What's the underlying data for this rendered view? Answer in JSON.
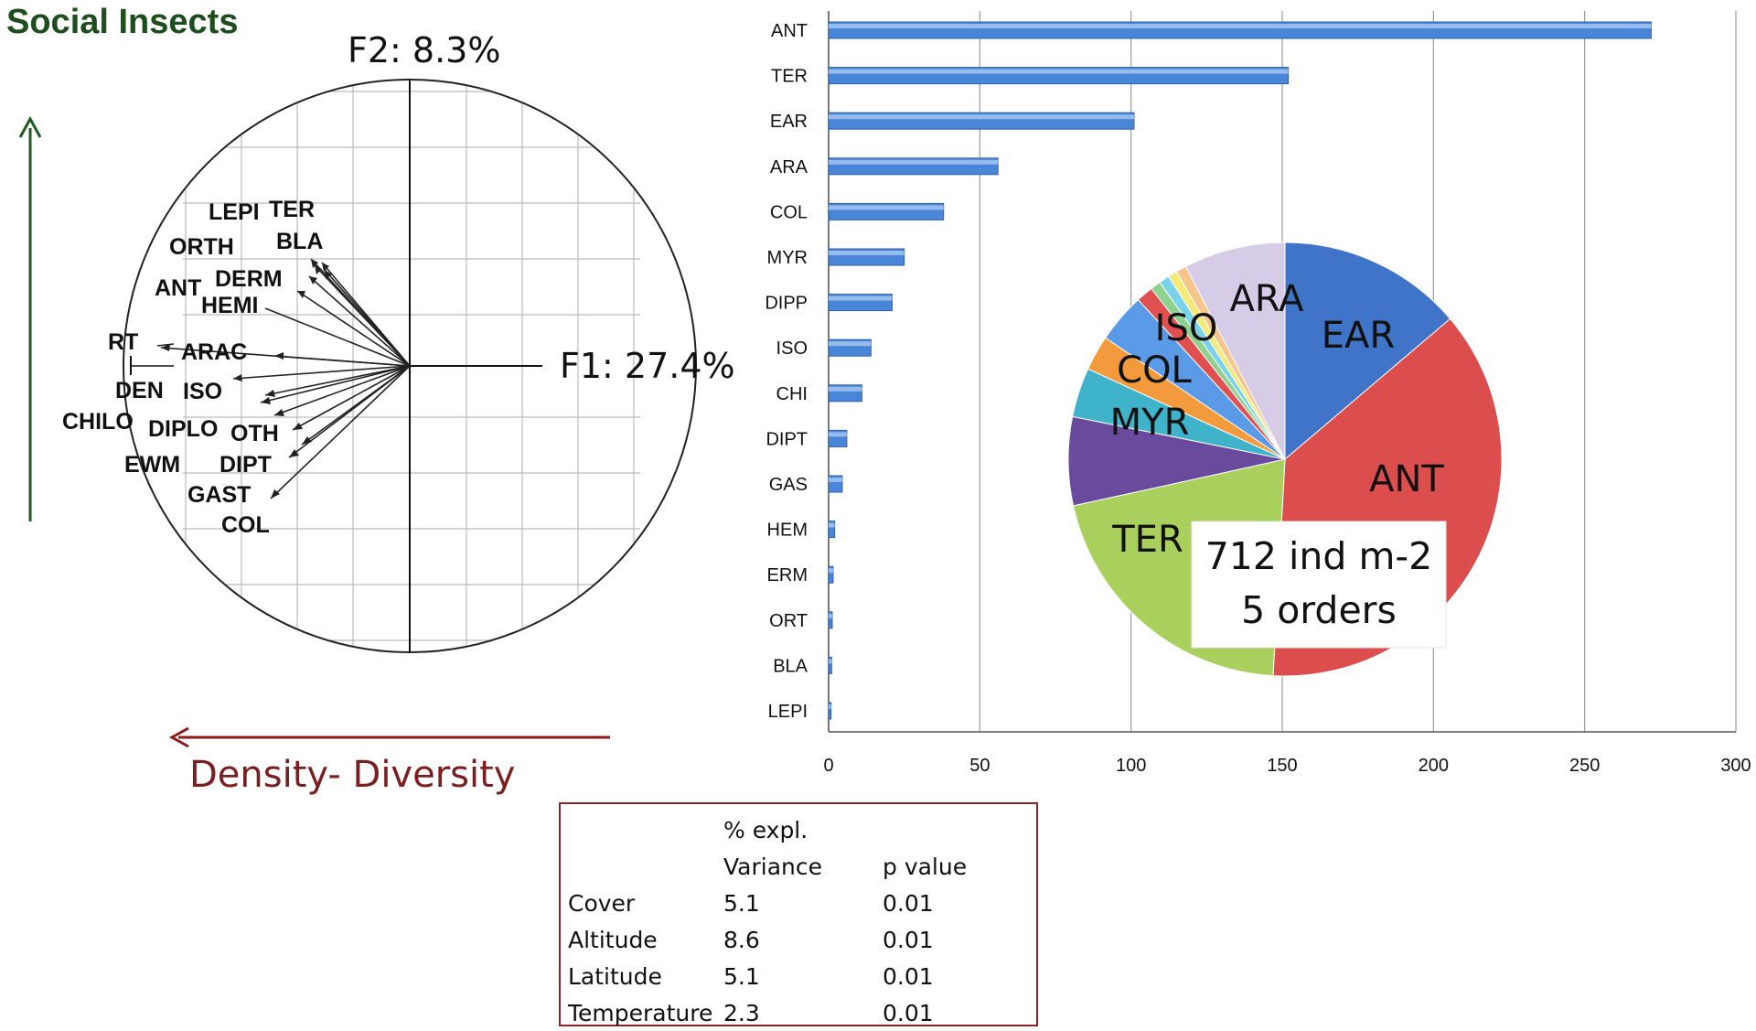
{
  "pca": {
    "corner_label": "Social Insects",
    "f2_label": "F2: 8.3%",
    "f1_label": "F1: 27.4%",
    "arrow_label": "Density- Diversity",
    "colors": {
      "social_arrow": "#1e5a1e",
      "density_arrow": "#8b1a1a",
      "corner_label": "#1e4d1e",
      "density_label": "#7a1f1f"
    },
    "variables": [
      "LEPI",
      "TER",
      "ORTH",
      "BLA",
      "ANT",
      "DERM",
      "HEMI",
      "RT",
      "ARAC",
      "DEN",
      "ISO",
      "CHILO",
      "DIPLO",
      "OTH",
      "EWM",
      "DIPT",
      "GAST",
      "COL"
    ]
  },
  "chart_data": [
    {
      "type": "bar",
      "orientation": "horizontal",
      "categories": [
        "ANT",
        "TER",
        "EAR",
        "ARA",
        "COL",
        "MYR",
        "DIPP",
        "ISO",
        "CHI",
        "DIPT",
        "GAS",
        "HEM",
        "ERM",
        "ORT",
        "BLA",
        "LEPI"
      ],
      "values": [
        272,
        152,
        101,
        56,
        38,
        25,
        21,
        14,
        11,
        6,
        4.5,
        2,
        1.5,
        1.2,
        1,
        0.8
      ],
      "xlim": [
        0,
        300
      ],
      "xticks": [
        0,
        50,
        100,
        150,
        200,
        250,
        300
      ],
      "grid": true,
      "bar_color": "#4a86d8"
    },
    {
      "type": "pie",
      "labels": [
        "EAR",
        "ANT",
        "TER",
        "MYR",
        "COL",
        "ISO",
        "ARA"
      ],
      "slices": [
        {
          "label": "EAR",
          "value": 14.2,
          "color": "#3f74c9"
        },
        {
          "label": "ANT",
          "value": 38.2,
          "color": "#dc4d4d"
        },
        {
          "label": "TER",
          "value": 21.3,
          "color": "#a9cf5c"
        },
        {
          "label": "MYR",
          "value": 6.8,
          "color": "#6a4a9c"
        },
        {
          "label": "",
          "value": 3.8,
          "color": "#3fb3c9"
        },
        {
          "label": "COL",
          "value": 2.7,
          "color": "#f29a3c"
        },
        {
          "label": "ISO",
          "value": 3.8,
          "color": "#5a9ae6"
        },
        {
          "label": "",
          "value": 1.3,
          "color": "#e05050"
        },
        {
          "label": "",
          "value": 0.8,
          "color": "#8fd18f"
        },
        {
          "label": "",
          "value": 0.8,
          "color": "#7ad3e8"
        },
        {
          "label": "",
          "value": 0.7,
          "color": "#f3ea7a"
        },
        {
          "label": "",
          "value": 0.8,
          "color": "#f5c58c"
        },
        {
          "label": "ARA",
          "value": 7.8,
          "color": "#d7cce8"
        }
      ],
      "annotation": [
        "712 ind m-2",
        "5 orders"
      ]
    }
  ],
  "table": {
    "headers": [
      [
        "",
        "% expl.",
        ""
      ],
      [
        "",
        "Variance",
        "p value"
      ]
    ],
    "rows": [
      [
        "Cover",
        "5.1",
        "0.01"
      ],
      [
        "Altitude",
        "8.6",
        "0.01"
      ],
      [
        "Latitude",
        "5.1",
        "0.01"
      ],
      [
        "Temperature",
        "2.3",
        "0.01"
      ]
    ]
  }
}
